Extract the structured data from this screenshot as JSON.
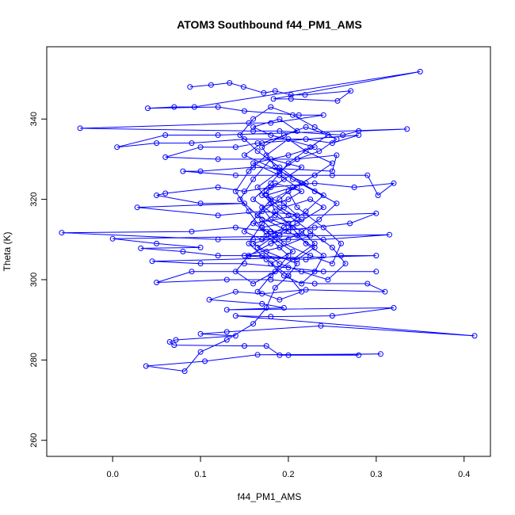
{
  "chart_data": {
    "type": "scatter",
    "title": "ATOM3 Southbound f44_PM1_AMS",
    "xlabel": "f44_PM1_AMS",
    "ylabel": "Theta (K)",
    "xlim": [
      -0.075,
      0.43
    ],
    "ylim": [
      256,
      358
    ],
    "x_ticks": [
      "0.0",
      "0.1",
      "0.2",
      "0.3",
      "0.4"
    ],
    "y_ticks": [
      "260",
      "280",
      "300",
      "320",
      "340"
    ],
    "connect_points": true,
    "marker": "open-circle",
    "grid": false,
    "legend": "none",
    "color": "#0000ff",
    "series": [
      {
        "points": [
          [
            0.088,
            348
          ],
          [
            0.112,
            348.5
          ],
          [
            0.133,
            349
          ],
          [
            0.149,
            348
          ],
          [
            0.172,
            346.5
          ],
          [
            0.185,
            347
          ],
          [
            0.203,
            346
          ],
          [
            0.219,
            346
          ],
          [
            0.271,
            347
          ],
          [
            0.256,
            344.5
          ],
          [
            0.203,
            345
          ],
          [
            0.183,
            345
          ],
          [
            0.35,
            351.8
          ],
          [
            0.093,
            343
          ],
          [
            0.07,
            343
          ],
          [
            0.04,
            342.7
          ],
          [
            0.12,
            343
          ],
          [
            0.15,
            342
          ],
          [
            0.212,
            341
          ],
          [
            0.24,
            341
          ],
          [
            0.18,
            339
          ],
          [
            0.155,
            339
          ],
          [
            -0.037,
            337.7
          ],
          [
            0.16,
            337
          ],
          [
            0.19,
            337
          ],
          [
            0.262,
            336
          ],
          [
            0.28,
            337
          ],
          [
            0.335,
            337.5
          ],
          [
            0.12,
            336
          ],
          [
            0.06,
            336
          ],
          [
            0.005,
            333
          ],
          [
            0.05,
            334
          ],
          [
            0.09,
            334
          ],
          [
            0.15,
            335
          ],
          [
            0.22,
            335
          ],
          [
            0.25,
            334
          ],
          [
            0.28,
            336
          ],
          [
            0.165,
            334
          ],
          [
            0.14,
            333
          ],
          [
            0.1,
            333
          ],
          [
            0.06,
            330.5
          ],
          [
            0.12,
            330
          ],
          [
            0.21,
            330
          ],
          [
            0.255,
            331
          ],
          [
            0.25,
            327
          ],
          [
            0.16,
            328
          ],
          [
            0.1,
            327
          ],
          [
            0.08,
            327
          ],
          [
            0.14,
            326
          ],
          [
            0.19,
            326
          ],
          [
            0.25,
            326
          ],
          [
            0.29,
            326
          ],
          [
            0.302,
            321
          ],
          [
            0.32,
            324
          ],
          [
            0.275,
            323
          ],
          [
            0.23,
            324
          ],
          [
            0.18,
            323
          ],
          [
            0.15,
            322
          ],
          [
            0.12,
            323
          ],
          [
            0.06,
            321.5
          ],
          [
            0.05,
            321
          ],
          [
            0.1,
            319
          ],
          [
            0.15,
            319
          ],
          [
            0.028,
            318
          ],
          [
            0.12,
            316
          ],
          [
            0.17,
            317
          ],
          [
            0.22,
            316
          ],
          [
            0.3,
            316.5
          ],
          [
            0.27,
            314
          ],
          [
            0.23,
            313
          ],
          [
            0.18,
            312
          ],
          [
            0.14,
            313
          ],
          [
            0.09,
            312
          ],
          [
            -0.058,
            311.7
          ],
          [
            0.12,
            310
          ],
          [
            0.16,
            310
          ],
          [
            0.2,
            310
          ],
          [
            0.24,
            310
          ],
          [
            0.315,
            311.2
          ],
          [
            0.0,
            310.2
          ],
          [
            0.05,
            309
          ],
          [
            0.1,
            308
          ],
          [
            0.032,
            307.8
          ],
          [
            0.08,
            307
          ],
          [
            0.12,
            306
          ],
          [
            0.17,
            306
          ],
          [
            0.22,
            305
          ],
          [
            0.26,
            306
          ],
          [
            0.3,
            306
          ],
          [
            0.045,
            304.6
          ],
          [
            0.1,
            304
          ],
          [
            0.15,
            304
          ],
          [
            0.2,
            303
          ],
          [
            0.24,
            302
          ],
          [
            0.3,
            302
          ],
          [
            0.09,
            302
          ],
          [
            0.05,
            299.3
          ],
          [
            0.13,
            300
          ],
          [
            0.18,
            300
          ],
          [
            0.23,
            299
          ],
          [
            0.29,
            299
          ],
          [
            0.31,
            297
          ],
          [
            0.22,
            297.5
          ],
          [
            0.17,
            296.5
          ],
          [
            0.14,
            297
          ],
          [
            0.11,
            295
          ],
          [
            0.17,
            294
          ],
          [
            0.195,
            293
          ],
          [
            0.13,
            292.5
          ],
          [
            0.32,
            293
          ],
          [
            0.25,
            291
          ],
          [
            0.18,
            290.8
          ],
          [
            0.14,
            291
          ],
          [
            0.412,
            286
          ],
          [
            0.237,
            288.5
          ],
          [
            0.13,
            287
          ],
          [
            0.1,
            286.5
          ],
          [
            0.14,
            286
          ],
          [
            0.072,
            285
          ],
          [
            0.065,
            284.5
          ],
          [
            0.07,
            283.7
          ],
          [
            0.15,
            283.5
          ],
          [
            0.175,
            283.5
          ],
          [
            0.19,
            281.2
          ],
          [
            0.28,
            281.2
          ],
          [
            0.2,
            281.2
          ],
          [
            0.305,
            281.5
          ],
          [
            0.165,
            281.3
          ],
          [
            0.105,
            279.7
          ],
          [
            0.038,
            278.5
          ],
          [
            0.082,
            277.2
          ],
          [
            0.1,
            282
          ],
          [
            0.13,
            285
          ],
          [
            0.16,
            289
          ],
          [
            0.175,
            293
          ],
          [
            0.185,
            298
          ],
          [
            0.2,
            301
          ],
          [
            0.21,
            304
          ],
          [
            0.175,
            307
          ],
          [
            0.16,
            309
          ],
          [
            0.19,
            311
          ],
          [
            0.205,
            313
          ],
          [
            0.18,
            315
          ],
          [
            0.17,
            318
          ],
          [
            0.2,
            320
          ],
          [
            0.215,
            322
          ],
          [
            0.185,
            324
          ],
          [
            0.17,
            321
          ],
          [
            0.195,
            319
          ],
          [
            0.21,
            316
          ],
          [
            0.16,
            314
          ],
          [
            0.175,
            312
          ],
          [
            0.225,
            311
          ],
          [
            0.19,
            308
          ],
          [
            0.15,
            306
          ],
          [
            0.21,
            305
          ],
          [
            0.23,
            308
          ],
          [
            0.2,
            312
          ],
          [
            0.165,
            316
          ],
          [
            0.18,
            320
          ],
          [
            0.21,
            323
          ],
          [
            0.19,
            326
          ],
          [
            0.16,
            329
          ],
          [
            0.2,
            331
          ],
          [
            0.23,
            333
          ],
          [
            0.18,
            336
          ],
          [
            0.16,
            338
          ],
          [
            0.19,
            340
          ],
          [
            0.21,
            337
          ],
          [
            0.17,
            334
          ],
          [
            0.15,
            331
          ],
          [
            0.19,
            327
          ],
          [
            0.22,
            324
          ],
          [
            0.175,
            321
          ],
          [
            0.19,
            318
          ],
          [
            0.215,
            315
          ],
          [
            0.17,
            313
          ],
          [
            0.185,
            310
          ],
          [
            0.205,
            307
          ],
          [
            0.18,
            304
          ],
          [
            0.195,
            301
          ],
          [
            0.215,
            299
          ],
          [
            0.23,
            302
          ],
          [
            0.24,
            306
          ],
          [
            0.22,
            309
          ],
          [
            0.2,
            314
          ],
          [
            0.185,
            317
          ],
          [
            0.175,
            322
          ],
          [
            0.195,
            325
          ],
          [
            0.215,
            328
          ],
          [
            0.18,
            330
          ],
          [
            0.16,
            325
          ],
          [
            0.145,
            320
          ],
          [
            0.17,
            315
          ],
          [
            0.195,
            309
          ],
          [
            0.225,
            306
          ],
          [
            0.25,
            304
          ],
          [
            0.26,
            309
          ],
          [
            0.24,
            313
          ],
          [
            0.21,
            318
          ],
          [
            0.2,
            322
          ],
          [
            0.23,
            326
          ],
          [
            0.25,
            329
          ],
          [
            0.22,
            332
          ],
          [
            0.2,
            335
          ],
          [
            0.175,
            331
          ],
          [
            0.155,
            327
          ],
          [
            0.14,
            322
          ],
          [
            0.155,
            317
          ],
          [
            0.175,
            311
          ],
          [
            0.2,
            306
          ],
          [
            0.185,
            302
          ],
          [
            0.16,
            299
          ],
          [
            0.14,
            302
          ],
          [
            0.155,
            306
          ],
          [
            0.18,
            309
          ],
          [
            0.21,
            311
          ],
          [
            0.235,
            315
          ],
          [
            0.255,
            319
          ],
          [
            0.23,
            322
          ],
          [
            0.205,
            325
          ],
          [
            0.185,
            328
          ],
          [
            0.17,
            333
          ],
          [
            0.195,
            336
          ],
          [
            0.22,
            338
          ],
          [
            0.245,
            336
          ],
          [
            0.225,
            333
          ],
          [
            0.2,
            329
          ],
          [
            0.18,
            324
          ],
          [
            0.16,
            320
          ],
          [
            0.185,
            316
          ],
          [
            0.215,
            312
          ],
          [
            0.23,
            309
          ],
          [
            0.205,
            305
          ],
          [
            0.18,
            301
          ],
          [
            0.165,
            297
          ],
          [
            0.19,
            295
          ],
          [
            0.215,
            297
          ],
          [
            0.2,
            301
          ],
          [
            0.175,
            305
          ],
          [
            0.155,
            309
          ],
          [
            0.17,
            314
          ],
          [
            0.195,
            318
          ],
          [
            0.225,
            320
          ],
          [
            0.24,
            318
          ],
          [
            0.21,
            314
          ],
          [
            0.185,
            311
          ],
          [
            0.165,
            308
          ],
          [
            0.19,
            304
          ],
          [
            0.215,
            302
          ],
          [
            0.245,
            300
          ],
          [
            0.265,
            304
          ],
          [
            0.25,
            308
          ],
          [
            0.225,
            312
          ],
          [
            0.2,
            316
          ],
          [
            0.18,
            319
          ],
          [
            0.165,
            323
          ],
          [
            0.19,
            327
          ],
          [
            0.21,
            330
          ],
          [
            0.235,
            332
          ],
          [
            0.255,
            335
          ],
          [
            0.23,
            338
          ],
          [
            0.205,
            341
          ],
          [
            0.18,
            343
          ],
          [
            0.16,
            340
          ],
          [
            0.145,
            336
          ],
          [
            0.165,
            332
          ],
          [
            0.19,
            328
          ],
          [
            0.215,
            324
          ],
          [
            0.24,
            321
          ],
          [
            0.22,
            317
          ],
          [
            0.195,
            313
          ],
          [
            0.17,
            310
          ],
          [
            0.15,
            312
          ],
          [
            0.165,
            316
          ],
          [
            0.19,
            320
          ],
          [
            0.205,
            323
          ]
        ]
      }
    ]
  }
}
